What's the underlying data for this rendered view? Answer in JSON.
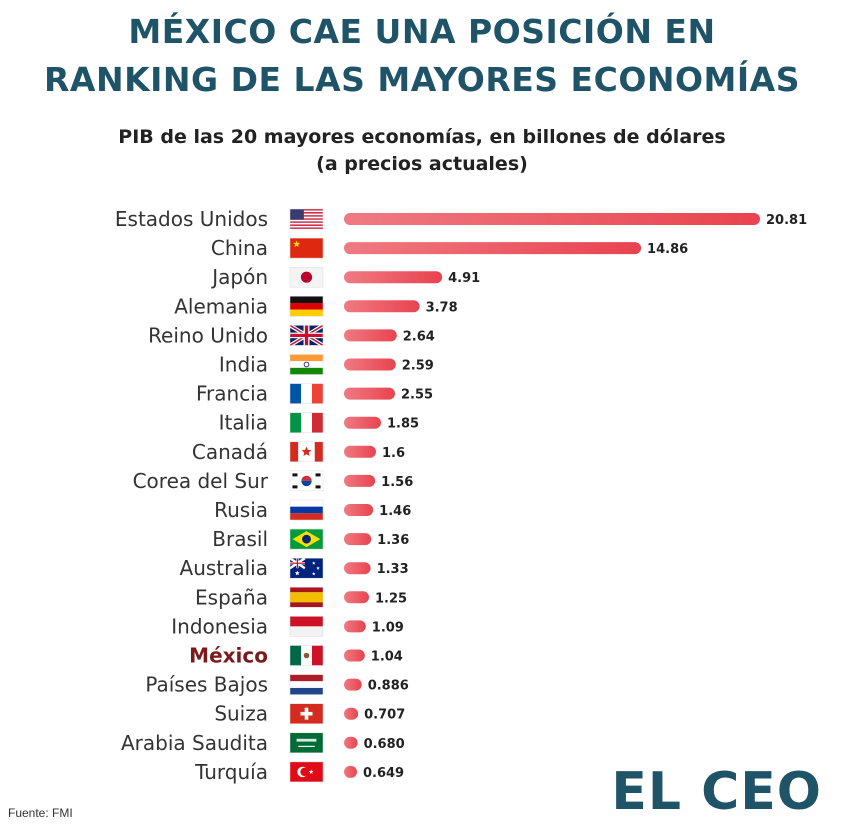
{
  "header": {
    "title_line1": "MÉXICO CAE UNA POSICIÓN EN",
    "title_line2": "RANKING DE LAS MAYORES ECONOMÍAS",
    "subtitle_line1": "PIB de las 20 mayores economías, en billones de dólares",
    "subtitle_line2": "(a precios actuales)"
  },
  "footer": {
    "source": "Fuente: FMI",
    "brand": "EL CEO"
  },
  "colors": {
    "bar": "#e8434f",
    "bar_light": "#f07a82",
    "title": "#1f5468",
    "highlight_label": "#7a1a1a",
    "label": "#333333"
  },
  "chart_data": {
    "type": "bar",
    "orientation": "horizontal",
    "title": "PIB de las 20 mayores economías, en billones de dólares (a precios actuales)",
    "categories": [
      "Estados Unidos",
      "China",
      "Japón",
      "Alemania",
      "Reino Unido",
      "India",
      "Francia",
      "Italia",
      "Canadá",
      "Corea del Sur",
      "Rusia",
      "Brasil",
      "Australia",
      "España",
      "Indonesia",
      "México",
      "Países Bajos",
      "Suiza",
      "Arabia Saudita",
      "Turquía"
    ],
    "values": [
      20.81,
      14.86,
      4.91,
      3.78,
      2.64,
      2.59,
      2.55,
      1.85,
      1.6,
      1.56,
      1.46,
      1.36,
      1.33,
      1.25,
      1.09,
      1.04,
      0.886,
      0.707,
      0.68,
      0.649
    ],
    "value_labels": [
      "20.81",
      "14.86",
      "4.91",
      "3.78",
      "2.64",
      "2.59",
      "2.55",
      "1.85",
      "1.6",
      "1.56",
      "1.46",
      "1.36",
      "1.33",
      "1.25",
      "1.09",
      "1.04",
      "0.886",
      "0.707",
      "0.680",
      "0.649"
    ],
    "flags": [
      "usa",
      "china",
      "japan",
      "germany",
      "uk",
      "india",
      "france",
      "italy",
      "canada",
      "korea",
      "russia",
      "brazil",
      "australia",
      "spain",
      "indonesia",
      "mexico",
      "netherlands",
      "switzerland",
      "saudi",
      "turkey"
    ],
    "highlight": "México",
    "xlim": [
      0,
      20.81
    ],
    "grid": false,
    "legend": "none"
  }
}
